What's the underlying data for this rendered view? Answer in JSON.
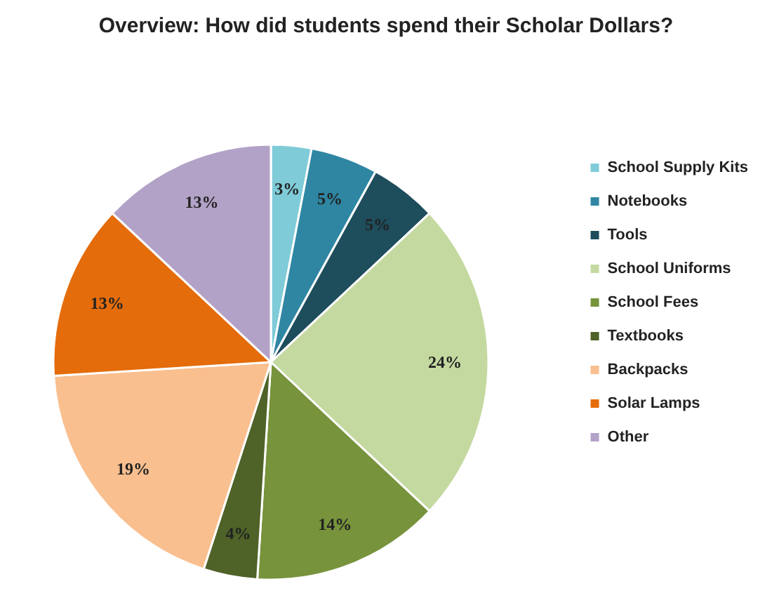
{
  "chart_data": {
    "type": "pie",
    "title": "Overview: How did students spend their Scholar Dollars?",
    "categories": [
      "School Supply Kits",
      "Notebooks",
      "Tools",
      "School Uniforms",
      "School Fees",
      "Textbooks",
      "Backpacks",
      "Solar Lamps",
      "Other"
    ],
    "values": [
      3,
      5,
      5,
      24,
      14,
      4,
      19,
      13,
      13
    ],
    "colors": [
      "#7fcbd8",
      "#2f86a3",
      "#1e4d5c",
      "#c4d9a0",
      "#77933c",
      "#4f6228",
      "#f9bf8f",
      "#e46c0a",
      "#b3a2c7"
    ],
    "value_labels": [
      "3%",
      "5%",
      "5%",
      "24%",
      "14%",
      "4%",
      "19%",
      "13%",
      "13%"
    ],
    "legend": "right"
  }
}
